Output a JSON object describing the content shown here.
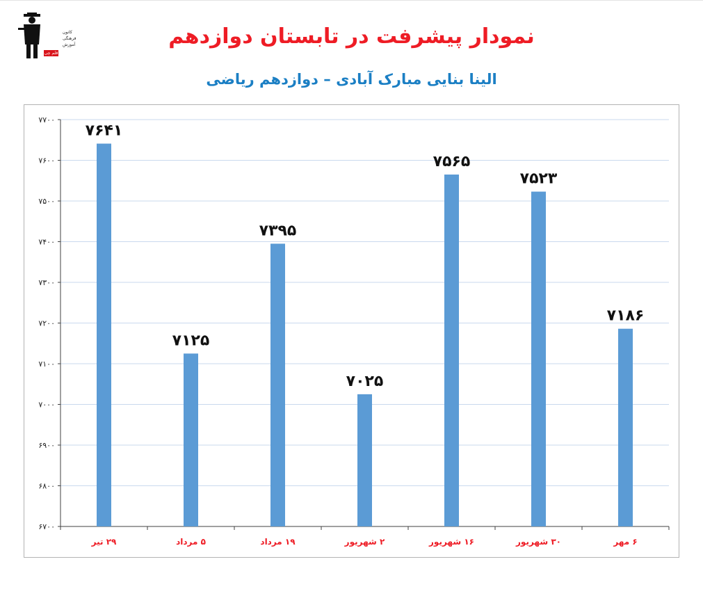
{
  "header": {
    "title": "نمودار پیشرفت در تابستان دوازدهم",
    "subtitle": "الینا بنایی مبارک آبادی – دوازدهم ریاضی"
  },
  "logo": {
    "line1": "کانون",
    "line2": "فرهنگی",
    "line3": "آموزش",
    "badge": "قلم چی"
  },
  "colors": {
    "title": "#ee1c25",
    "subtitle": "#1b7fc4",
    "bar": "#5b9bd5",
    "category_label": "#ee1c25",
    "gridline": "#c9d9ee"
  },
  "chart_data": {
    "type": "bar",
    "categories": [
      "۲۹ تیر",
      "۵ مرداد",
      "۱۹ مرداد",
      "۲ شهریور",
      "۱۶ شهریور",
      "۳۰ شهریور",
      "۶ مهر"
    ],
    "values": [
      7641,
      7125,
      7395,
      7025,
      7565,
      7523,
      7186
    ],
    "data_labels": [
      "۷۶۴۱",
      "۷۱۲۵",
      "۷۳۹۵",
      "۷۰۲۵",
      "۷۵۶۵",
      "۷۵۲۳",
      "۷۱۸۶"
    ],
    "ylim": [
      6700,
      7700
    ],
    "yticks": [
      6700,
      6800,
      6900,
      7000,
      7100,
      7200,
      7300,
      7400,
      7500,
      7600,
      7700
    ],
    "ytick_labels": [
      "۶۷۰۰",
      "۶۸۰۰",
      "۶۹۰۰",
      "۷۰۰۰",
      "۷۱۰۰",
      "۷۲۰۰",
      "۷۳۰۰",
      "۷۴۰۰",
      "۷۵۰۰",
      "۷۶۰۰",
      "۷۷۰۰"
    ],
    "grid": true,
    "legend": "none",
    "title": "",
    "xlabel": "",
    "ylabel": ""
  }
}
